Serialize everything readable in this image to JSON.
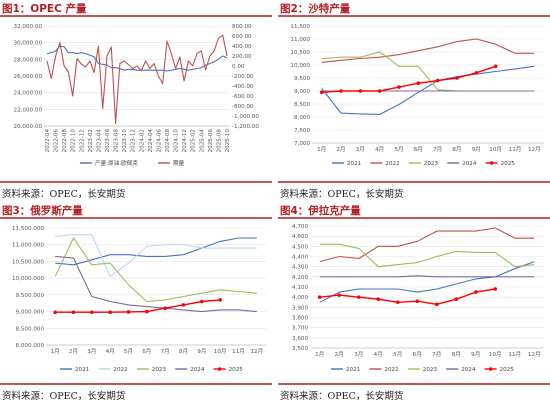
{
  "chart_data": [
    {
      "type": "line",
      "title": "图1：OPEC 产量",
      "source": "资料来源：OPEC，长安期货",
      "x": [
        "2022-04",
        "2022-05",
        "2022-06",
        "2022-07",
        "2022-08",
        "2022-09",
        "2022-10",
        "2022-11",
        "2022-12",
        "2023-01",
        "2023-02",
        "2023-03",
        "2023-04",
        "2023-05",
        "2023-06",
        "2023-07",
        "2023-08",
        "2023-09",
        "2023-10",
        "2023-11",
        "2023-12",
        "2024-01",
        "2024-02",
        "2024-03",
        "2024-04",
        "2024-05",
        "2024-06",
        "2024-07",
        "2024-08",
        "2024-09",
        "2024-10",
        "2024-11",
        "2024-12",
        "2025-01",
        "2025-02",
        "2025-03",
        "2025-04",
        "2025-05",
        "2025-06",
        "2025-07",
        "2025-08",
        "2025-09",
        "2025-10"
      ],
      "x_tick_labels": [
        "2022-04",
        "2022-06",
        "2022-08",
        "2022-10",
        "2022-12",
        "2023-02",
        "2023-04",
        "2023-06",
        "2023-08",
        "2023-10",
        "2023-12",
        "2024-02",
        "2024-04",
        "2024-06",
        "2024-08",
        "2024-10",
        "2024-12",
        "2025-02",
        "2025-04",
        "2025-06",
        "2025-08",
        "2025-10"
      ],
      "ylim": [
        20000,
        32000
      ],
      "y_ticks": [
        "20,000.00",
        "22,000.00",
        "24,000.00",
        "26,000.00",
        "28,000.00",
        "30,000.00",
        "32,000.00"
      ],
      "y2lim": [
        -1200,
        800
      ],
      "y2_ticks": [
        "-1,200.00",
        "-1,000.00",
        "-800.00",
        "-600.00",
        "-400.00",
        "-200.00",
        "0.00",
        "200.00",
        "400.00",
        "600.00",
        "800.00"
      ],
      "series": [
        {
          "name": "产量:原油:欧佩克",
          "axis": "left",
          "color": "#4472c4",
          "values": [
            28700,
            28800,
            29000,
            29600,
            29500,
            28800,
            28800,
            28700,
            28800,
            28700,
            28500,
            28300,
            27500,
            27400,
            27300,
            27000,
            27000,
            26900,
            26700,
            26800,
            26800,
            26700,
            26700,
            26700,
            26700,
            26700,
            26700,
            26700,
            26600,
            26700,
            26800,
            26900,
            26800,
            26700,
            26800,
            26900,
            27000,
            27300,
            27500,
            27700,
            28000,
            28400,
            28200
          ]
        },
        {
          "name": "期量",
          "axis": "right",
          "color": "#c0504d",
          "values": [
            100,
            -250,
            200,
            470,
            0,
            -120,
            -600,
            150,
            40,
            -20,
            100,
            -130,
            400,
            -850,
            200,
            380,
            -1150,
            50,
            100,
            30,
            -50,
            0,
            -100,
            100,
            -50,
            50,
            -200,
            -350,
            500,
            250,
            -50,
            180,
            -300,
            100,
            0,
            250,
            300,
            -80,
            200,
            300,
            550,
            620,
            200
          ]
        }
      ]
    },
    {
      "type": "line",
      "title": "图2：沙特产量",
      "source": "资料来源：OPEC，长安期货",
      "categories": [
        "1月",
        "2月",
        "3月",
        "4月",
        "5月",
        "6月",
        "7月",
        "8月",
        "9月",
        "10月",
        "11月",
        "12月"
      ],
      "ylim": [
        7000,
        11500
      ],
      "y_ticks": [
        "7,000",
        "7,500",
        "8,000",
        "8,500",
        "9,000",
        "9,500",
        "10,000",
        "10,500",
        "11,000",
        "11,500"
      ],
      "series": [
        {
          "name": "2021",
          "color": "#4472c4",
          "values": [
            9100,
            8150,
            8120,
            8100,
            8480,
            8950,
            9400,
            9550,
            9650,
            9750,
            9850,
            9950
          ]
        },
        {
          "name": "2022",
          "color": "#c0504d",
          "values": [
            10100,
            10180,
            10250,
            10300,
            10400,
            10550,
            10700,
            10900,
            11000,
            10800,
            10450,
            10450
          ]
        },
        {
          "name": "2023",
          "color": "#9bbb59",
          "values": [
            10250,
            10300,
            10300,
            10500,
            9950,
            9950,
            9050,
            9000,
            9000,
            9000,
            9000,
            9000
          ]
        },
        {
          "name": "2024",
          "color": "#8064a2",
          "values": [
            9000,
            9000,
            9000,
            9000,
            9000,
            9000,
            9000,
            9000,
            9000,
            9000,
            9000,
            9000
          ]
        },
        {
          "name": "2025",
          "color": "#ff0000",
          "values": [
            8950,
            9000,
            9000,
            9000,
            9150,
            9300,
            9400,
            9500,
            9700,
            9950,
            null,
            null
          ]
        }
      ]
    },
    {
      "type": "line",
      "title": "图3：俄罗斯产量",
      "source": "资料来源：OPEC，长安期货",
      "categories": [
        "1月",
        "2月",
        "3月",
        "4月",
        "5月",
        "6月",
        "7月",
        "8月",
        "9月",
        "10月",
        "11月",
        "12月"
      ],
      "ylim": [
        8000,
        11500
      ],
      "y_ticks": [
        "8,000.000",
        "8,500.000",
        "9,000.000",
        "9,500.000",
        "10,000.000",
        "10,500.000",
        "11,000.000",
        "11,500.000"
      ],
      "series": [
        {
          "name": "2021",
          "color": "#4472c4",
          "values": [
            10450,
            10400,
            10550,
            10700,
            10700,
            10650,
            10650,
            10700,
            10900,
            11100,
            11200,
            11200
          ]
        },
        {
          "name": "2022",
          "color": "#bdd7ee",
          "values": [
            11250,
            11300,
            11300,
            10050,
            10450,
            10950,
            11000,
            11000,
            10900,
            10900,
            10900,
            10900
          ]
        },
        {
          "name": "2023",
          "color": "#9bbb59",
          "values": [
            10050,
            11200,
            10400,
            10450,
            9800,
            9300,
            9350,
            9450,
            9550,
            9650,
            9600,
            9550
          ]
        },
        {
          "name": "2024",
          "color": "#8064a2",
          "values": [
            10650,
            10600,
            9450,
            9300,
            9200,
            9150,
            9100,
            9050,
            9000,
            9050,
            9050,
            9000
          ]
        },
        {
          "name": "2025",
          "color": "#ff0000",
          "values": [
            8980,
            8980,
            8980,
            8980,
            8990,
            9000,
            9100,
            9200,
            9300,
            9350,
            null,
            null
          ]
        }
      ]
    },
    {
      "type": "line",
      "title": "图4：伊拉克产量",
      "source": "资料来源：OPEC，长安期货",
      "categories": [
        "1月",
        "2月",
        "3月",
        "4月",
        "5月",
        "6月",
        "7月",
        "8月",
        "9月",
        "10月",
        "11月",
        "12月"
      ],
      "ylim": [
        3500,
        4700
      ],
      "y_ticks": [
        "3,500",
        "3,600",
        "3,700",
        "3,800",
        "3,900",
        "4,000",
        "4,100",
        "4,200",
        "4,300",
        "4,400",
        "4,500",
        "4,600",
        "4,700"
      ],
      "series": [
        {
          "name": "2021",
          "color": "#4472c4",
          "values": [
            3950,
            4050,
            4080,
            4080,
            4080,
            4050,
            4080,
            4130,
            4180,
            4200,
            4280,
            4350
          ]
        },
        {
          "name": "2022",
          "color": "#c0504d",
          "values": [
            4350,
            4400,
            4380,
            4500,
            4500,
            4550,
            4650,
            4650,
            4650,
            4680,
            4580,
            4580
          ]
        },
        {
          "name": "2023",
          "color": "#9bbb59",
          "values": [
            4520,
            4520,
            4480,
            4300,
            4320,
            4340,
            4400,
            4450,
            4440,
            4440,
            4300,
            4320
          ]
        },
        {
          "name": "2024",
          "color": "#8064a2",
          "values": [
            4200,
            4200,
            4200,
            4200,
            4200,
            4210,
            4200,
            4200,
            4200,
            4200,
            4200,
            4200
          ]
        },
        {
          "name": "2025",
          "color": "#ff0000",
          "values": [
            4000,
            4020,
            4000,
            3980,
            3950,
            3960,
            3930,
            3980,
            4050,
            4080,
            null,
            null
          ]
        }
      ]
    }
  ]
}
